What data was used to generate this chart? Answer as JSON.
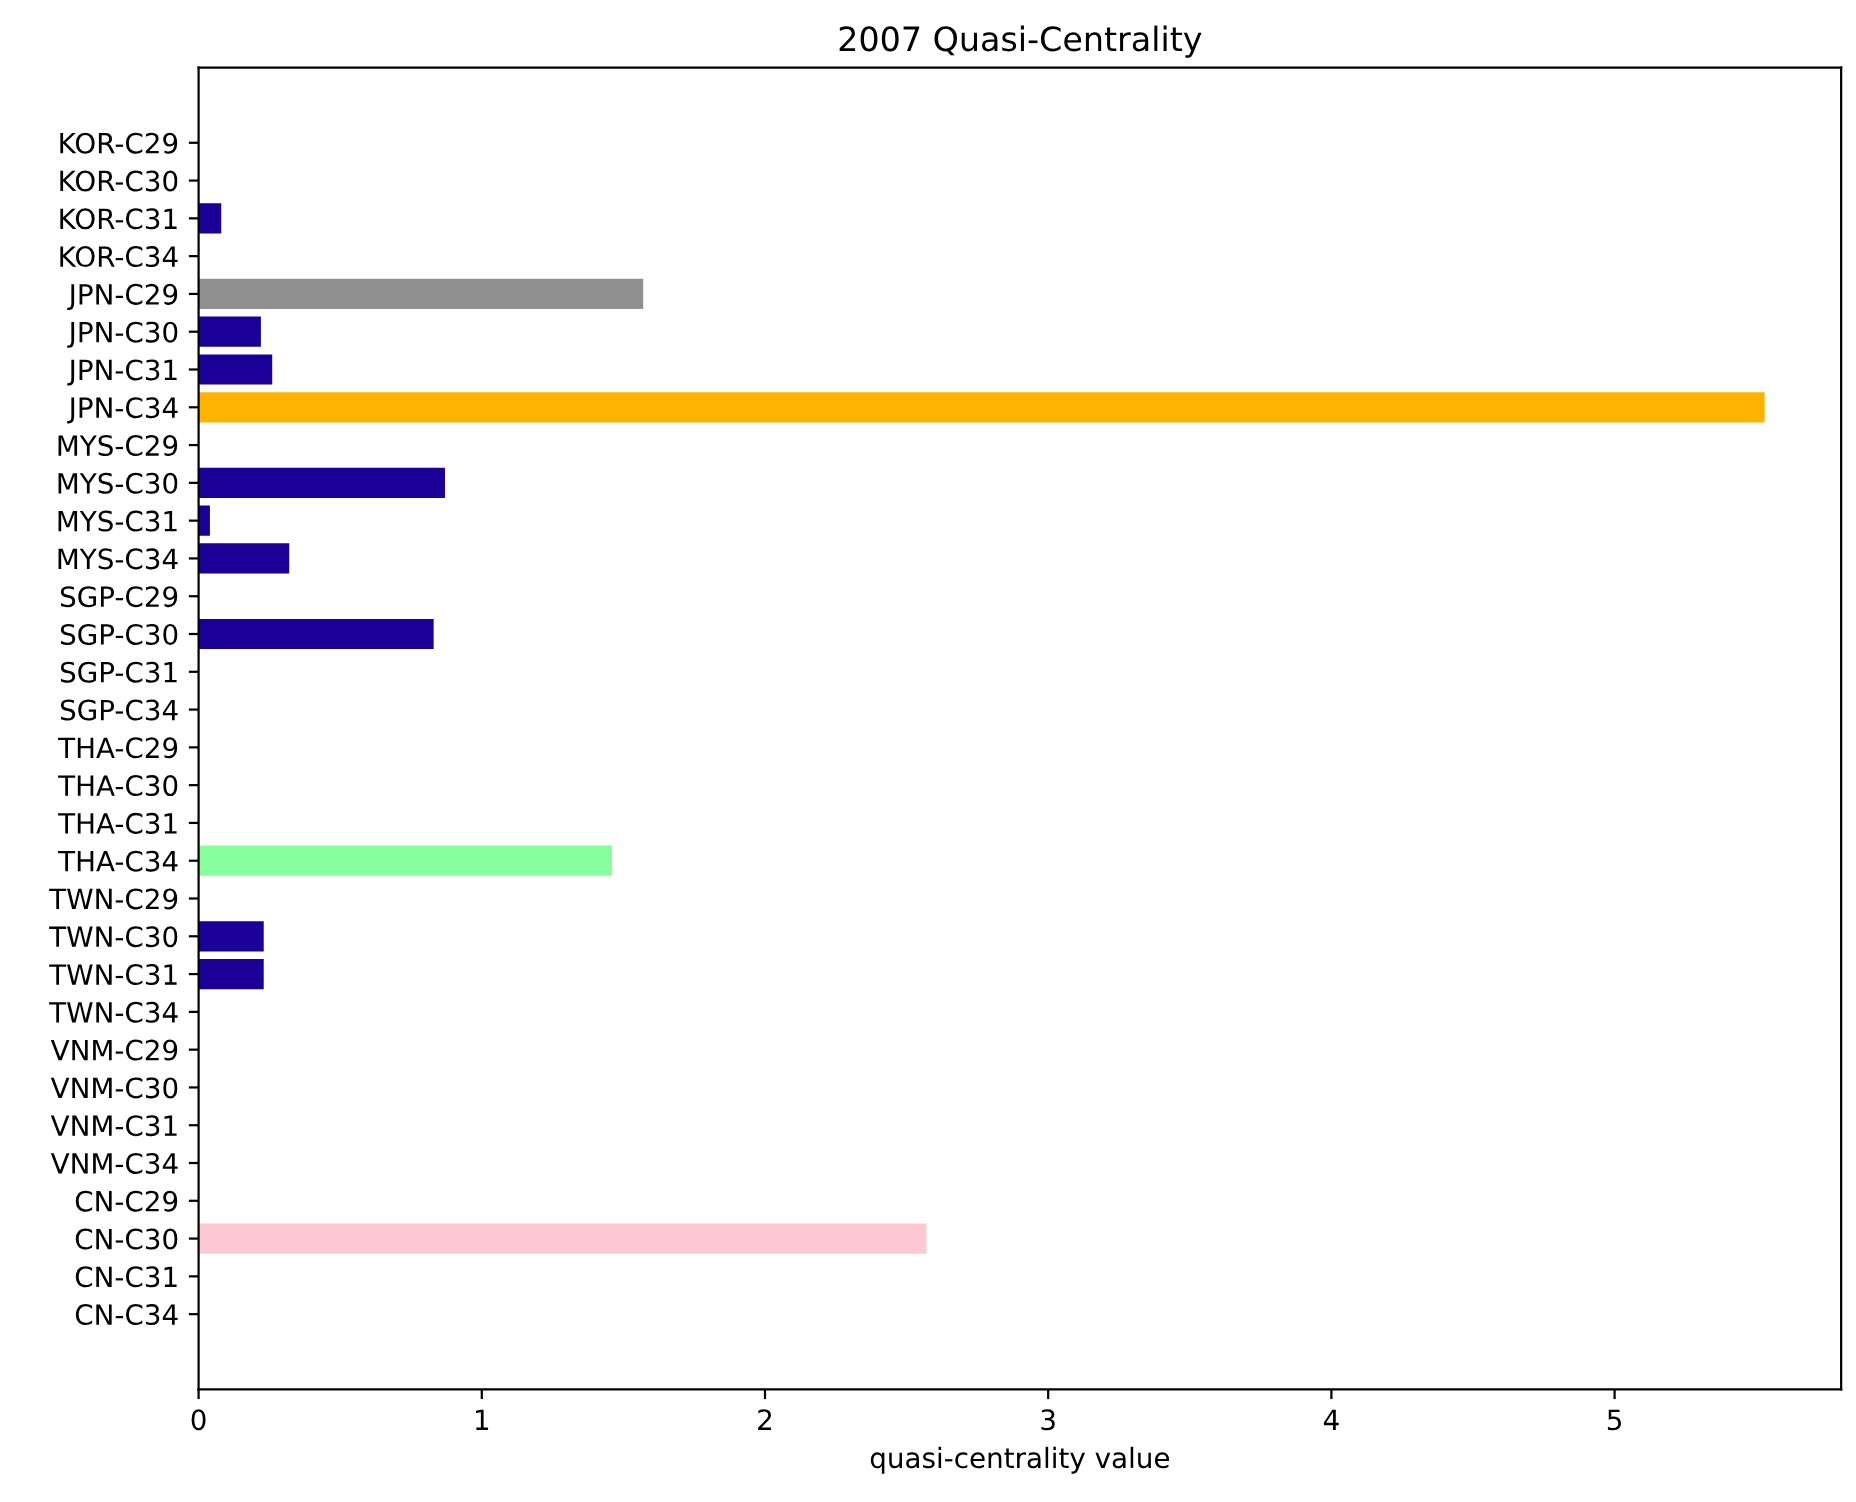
{
  "chart_data": {
    "type": "bar",
    "orientation": "horizontal",
    "title": "2007 Quasi-Centrality",
    "xlabel": "quasi-centrality value",
    "categories": [
      "KOR-C29",
      "KOR-C30",
      "KOR-C31",
      "KOR-C34",
      "JPN-C29",
      "JPN-C30",
      "JPN-C31",
      "JPN-C34",
      "MYS-C29",
      "MYS-C30",
      "MYS-C31",
      "MYS-C34",
      "SGP-C29",
      "SGP-C30",
      "SGP-C31",
      "SGP-C34",
      "THA-C29",
      "THA-C30",
      "THA-C31",
      "THA-C34",
      "TWN-C29",
      "TWN-C30",
      "TWN-C31",
      "TWN-C34",
      "VNM-C29",
      "VNM-C30",
      "VNM-C31",
      "VNM-C34",
      "CN-C29",
      "CN-C30",
      "CN-C31",
      "CN-C34"
    ],
    "values": [
      0,
      0,
      0.08,
      0,
      1.57,
      0.22,
      0.26,
      5.53,
      0,
      0.87,
      0.04,
      0.32,
      0,
      0.83,
      0,
      0,
      0,
      0,
      0,
      1.46,
      0,
      0.23,
      0.23,
      0,
      0,
      0,
      0,
      0,
      0,
      2.57,
      0,
      0
    ],
    "colors": [
      "#1a0096",
      "#1a0096",
      "#1a0096",
      "#1a0096",
      "#909090",
      "#1a0096",
      "#1a0096",
      "#ffb300",
      "#1a0096",
      "#1a0096",
      "#1a0096",
      "#1a0096",
      "#1a0096",
      "#1a0096",
      "#1a0096",
      "#1a0096",
      "#1a0096",
      "#1a0096",
      "#1a0096",
      "#88ff9f",
      "#1a0096",
      "#1a0096",
      "#1a0096",
      "#1a0096",
      "#1a0096",
      "#1a0096",
      "#1a0096",
      "#1a0096",
      "#1a0096",
      "#ffc8d2",
      "#1a0096",
      "#1a0096"
    ],
    "xlim": [
      0,
      5.8
    ],
    "xticks": [
      0,
      1,
      2,
      3,
      4,
      5
    ],
    "grid": false,
    "legend": false
  }
}
